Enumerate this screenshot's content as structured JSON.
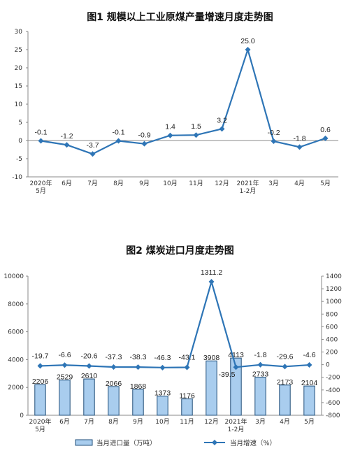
{
  "chart_data": [
    {
      "type": "line",
      "title": "图1  规模以上工业原煤产量增速月度走势图",
      "x": [
        "2020年\n5月",
        "6月",
        "7月",
        "8月",
        "9月",
        "10月",
        "11月",
        "12月",
        "2021年\n1-2月",
        "3月",
        "4月",
        "5月"
      ],
      "series": [
        {
          "values": [
            -0.1,
            -1.2,
            -3.7,
            -0.1,
            -0.9,
            1.4,
            1.5,
            3.2,
            25.0,
            -0.2,
            -1.8,
            0.6
          ],
          "labels": [
            "-0.1",
            "-1.2",
            "-3.7",
            "-0.1",
            "-0.9",
            "1.4",
            "1.5",
            "3.2",
            "25.0",
            "-0.2",
            "-1.8",
            "0.6"
          ]
        }
      ],
      "ylim": [
        -10,
        30
      ],
      "yticks": [
        "-10",
        "-5",
        "0",
        "5",
        "10",
        "15",
        "20",
        "25",
        "30"
      ],
      "colors": {
        "line": "#2E75B6"
      },
      "grid": false
    },
    {
      "type": "bar",
      "title": "图2  煤炭进口月度走势图",
      "categories": [
        "2020年\n5月",
        "6月",
        "7月",
        "8月",
        "9月",
        "10月",
        "11月",
        "12月",
        "2021年\n1-2月",
        "3月",
        "4月",
        "5月"
      ],
      "series": [
        {
          "name": "当月进口量（万吨）",
          "type": "bar",
          "axis": "left",
          "values": [
            2206,
            2529,
            2610,
            2066,
            1868,
            1373,
            1176,
            3908,
            4113,
            2733,
            2173,
            2104
          ],
          "labels": [
            "2206",
            "2529",
            "2610",
            "2066",
            "1868",
            "1373",
            "1176",
            "3908",
            "4113",
            "2733",
            "2173",
            "2104"
          ]
        },
        {
          "name": "当月增速（%）",
          "type": "line",
          "axis": "right",
          "values": [
            -19.7,
            -6.6,
            -20.6,
            -37.3,
            -38.3,
            -46.3,
            -43.1,
            1311.2,
            -39.5,
            -1.8,
            -29.6,
            -4.6
          ],
          "labels": [
            "-19.7",
            "-6.6",
            "-20.6",
            "-37.3",
            "-38.3",
            "-46.3",
            "-43.1",
            "1311.2",
            "-39.5",
            "-1.8",
            "-29.6",
            "-4.6"
          ]
        }
      ],
      "ylim_left": [
        0,
        10000
      ],
      "yticks_left": [
        "0",
        "2000",
        "4000",
        "6000",
        "8000",
        "10000"
      ],
      "ylim_right": [
        -800,
        1400
      ],
      "yticks_right": [
        "-800",
        "-600",
        "-400",
        "-200",
        "0",
        "200",
        "400",
        "600",
        "800",
        "1000",
        "1200",
        "1400"
      ],
      "legend": "bottom",
      "colors": {
        "bar_fill": "#A9CDEE",
        "bar_stroke": "#1F4E79",
        "line": "#2E75B6"
      },
      "grid": false
    }
  ]
}
